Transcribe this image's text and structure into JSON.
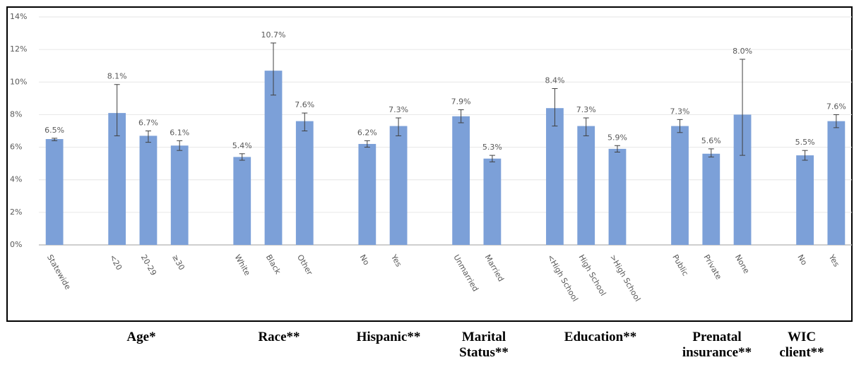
{
  "chart_data": {
    "type": "bar",
    "categories": [
      "Statewide",
      null,
      "<20",
      "20-29",
      "≥30",
      null,
      "White",
      "Black",
      "Other",
      null,
      "No",
      "Yes",
      null,
      "Unmarried",
      "Married",
      null,
      "<High School",
      "High School",
      ">High School",
      null,
      "Public",
      "Private",
      "None",
      null,
      "No",
      "Yes"
    ],
    "values": [
      6.5,
      null,
      8.1,
      6.7,
      6.1,
      null,
      5.4,
      10.7,
      7.6,
      null,
      6.2,
      7.3,
      null,
      7.9,
      5.3,
      null,
      8.4,
      7.3,
      5.9,
      null,
      7.3,
      5.6,
      8.0,
      null,
      5.5,
      7.6
    ],
    "value_labels": [
      "6.5%",
      null,
      "8.1%",
      "6.7%",
      "6.1%",
      null,
      "5.4%",
      "10.7%",
      "7.6%",
      null,
      "6.2%",
      "7.3%",
      null,
      "7.9%",
      "5.3%",
      null,
      "8.4%",
      "7.3%",
      "5.9%",
      null,
      "7.3%",
      "5.6%",
      "8.0%",
      null,
      "5.5%",
      "7.6%"
    ],
    "error_low": [
      6.4,
      null,
      6.7,
      6.3,
      5.8,
      null,
      5.2,
      9.2,
      7.0,
      null,
      6.0,
      6.7,
      null,
      7.5,
      5.1,
      null,
      7.3,
      6.7,
      5.7,
      null,
      6.9,
      5.4,
      5.5,
      null,
      5.2,
      7.2
    ],
    "error_high": [
      6.55,
      null,
      9.85,
      7.0,
      6.4,
      null,
      5.6,
      12.4,
      8.1,
      null,
      6.4,
      7.8,
      null,
      8.3,
      5.5,
      null,
      9.6,
      7.8,
      6.1,
      null,
      7.7,
      5.9,
      11.4,
      null,
      5.8,
      8.0
    ],
    "color": "#7ca0d8",
    "ylim": [
      0,
      14
    ],
    "yticks": [
      {
        "value": 0,
        "label": "0%"
      },
      {
        "value": 2,
        "label": "2%"
      },
      {
        "value": 4,
        "label": "4%"
      },
      {
        "value": 6,
        "label": "6%"
      },
      {
        "value": 8,
        "label": "8%"
      },
      {
        "value": 10,
        "label": "10%"
      },
      {
        "value": 12,
        "label": "12%"
      },
      {
        "value": 14,
        "label": "14%"
      }
    ],
    "grid": true,
    "groups": [
      "Age*",
      "Race**",
      "Hispanic**",
      "Marital Status**",
      "Education**",
      "Prenatal insurance**",
      "WIC client**"
    ]
  }
}
